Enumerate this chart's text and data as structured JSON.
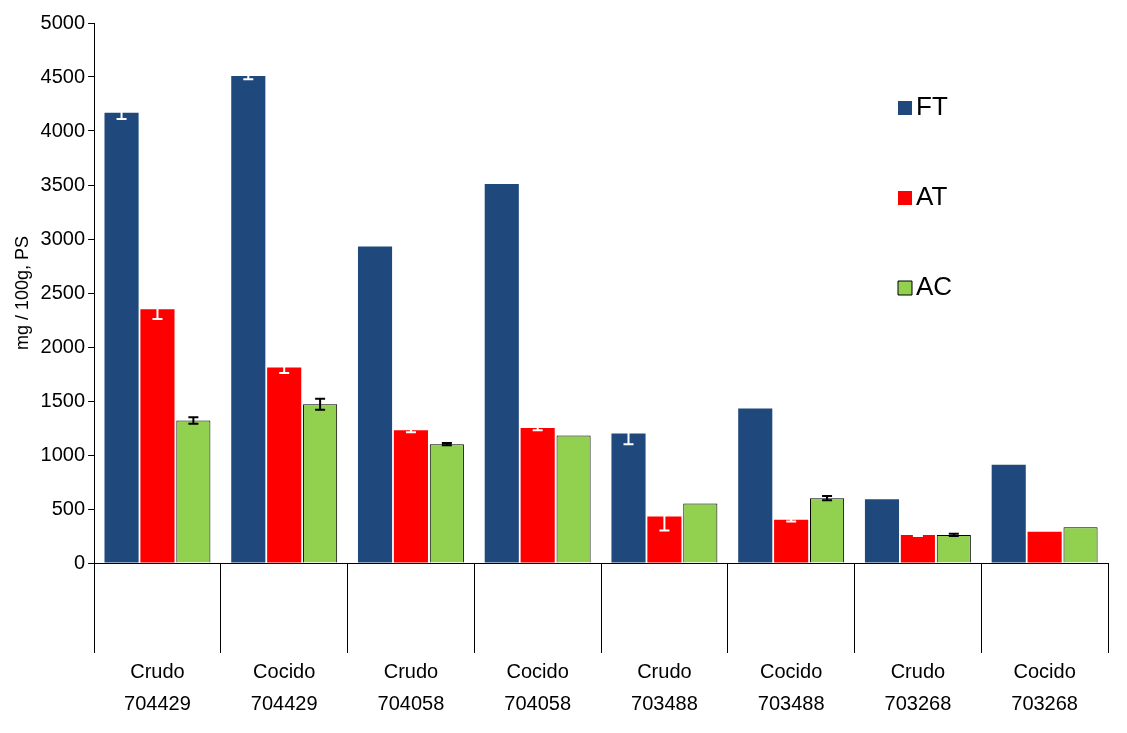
{
  "chart_data": {
    "type": "bar",
    "ylabel": "mg / 100g, PS",
    "categories": [
      "Crudo\n704429",
      "Cocido\n704429",
      "Crudo\n704058",
      "Cocido\n704058",
      "Crudo\n703488",
      "Cocido\n703488",
      "Crudo\n703268",
      "Cocido\n703268"
    ],
    "series": [
      {
        "name": "FT",
        "color": "#1f497d",
        "values": [
          4170,
          4510,
          2930,
          3510,
          1200,
          1430,
          590,
          910
        ],
        "errors": [
          60,
          30,
          null,
          null,
          100,
          null,
          null,
          null
        ]
      },
      {
        "name": "AT",
        "color": "#ff0000",
        "values": [
          2350,
          1810,
          1230,
          1250,
          430,
          400,
          260,
          290
        ],
        "errors": [
          90,
          50,
          20,
          20,
          130,
          15,
          10,
          null
        ]
      },
      {
        "name": "AC",
        "color": "#92d050",
        "values": [
          1320,
          1470,
          1100,
          1180,
          550,
          600,
          260,
          330
        ],
        "errors": [
          30,
          50,
          10,
          null,
          null,
          20,
          10,
          null
        ]
      }
    ],
    "ylim": [
      0,
      5000
    ],
    "yticks": [
      0,
      500,
      1000,
      1500,
      2000,
      2500,
      3000,
      3500,
      4000,
      4500,
      5000
    ],
    "grid": false,
    "legend": "top right"
  }
}
